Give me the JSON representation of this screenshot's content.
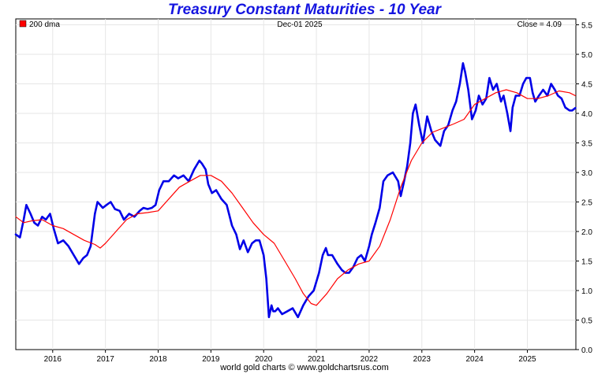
{
  "chart_data": {
    "type": "line",
    "title": "Treasury Constant Maturities - 10 Year",
    "date_label": "Dec-01  2025",
    "close_label": "Close = 4.09",
    "legend": [
      {
        "name": "200 dma",
        "color": "#ff0000"
      }
    ],
    "footer": "world gold charts © www.goldchartsrus.com",
    "xlim": [
      2015.3,
      2025.92
    ],
    "ylim": [
      0,
      5.6
    ],
    "x_ticks": [
      2016,
      2017,
      2018,
      2019,
      2020,
      2021,
      2022,
      2023,
      2024,
      2025
    ],
    "x_tick_labels": [
      "2016",
      "2017",
      "2018",
      "2019",
      "2020",
      "2021",
      "2022",
      "2023",
      "2024",
      "2025"
    ],
    "y_ticks": [
      0,
      0.5,
      1,
      1.5,
      2,
      2.5,
      3,
      3.5,
      4,
      4.5,
      5,
      5.5
    ],
    "y_tick_labels": [
      "0.0",
      "0.5",
      "1.0",
      "1.5",
      "2.0",
      "2.5",
      "3.0",
      "3.5",
      "4.0",
      "4.5",
      "5.0",
      "5.5"
    ],
    "grid": true,
    "series": [
      {
        "name": "",
        "color": "#0000e8",
        "x": [
          2015.3,
          2015.38,
          2015.45,
          2015.5,
          2015.58,
          2015.65,
          2015.72,
          2015.8,
          2015.87,
          2015.95,
          2016.02,
          2016.1,
          2016.2,
          2016.3,
          2016.4,
          2016.5,
          2016.58,
          2016.65,
          2016.72,
          2016.8,
          2016.85,
          2016.9,
          2016.95,
          2017.02,
          2017.1,
          2017.18,
          2017.27,
          2017.35,
          2017.45,
          2017.55,
          2017.65,
          2017.72,
          2017.8,
          2017.88,
          2017.95,
          2018.02,
          2018.1,
          2018.2,
          2018.3,
          2018.38,
          2018.48,
          2018.58,
          2018.68,
          2018.78,
          2018.83,
          2018.9,
          2018.95,
          2019.02,
          2019.1,
          2019.2,
          2019.3,
          2019.4,
          2019.48,
          2019.55,
          2019.62,
          2019.7,
          2019.78,
          2019.85,
          2019.92,
          2020.0,
          2020.05,
          2020.1,
          2020.15,
          2020.18,
          2020.22,
          2020.27,
          2020.35,
          2020.45,
          2020.55,
          2020.65,
          2020.75,
          2020.85,
          2020.95,
          2021.05,
          2021.12,
          2021.18,
          2021.22,
          2021.3,
          2021.4,
          2021.48,
          2021.55,
          2021.62,
          2021.7,
          2021.78,
          2021.85,
          2021.92,
          2022.0,
          2022.05,
          2022.12,
          2022.2,
          2022.27,
          2022.35,
          2022.45,
          2022.55,
          2022.6,
          2022.65,
          2022.72,
          2022.78,
          2022.83,
          2022.88,
          2022.95,
          2023.02,
          2023.1,
          2023.18,
          2023.25,
          2023.35,
          2023.42,
          2023.5,
          2023.58,
          2023.65,
          2023.72,
          2023.78,
          2023.82,
          2023.88,
          2023.95,
          2024.02,
          2024.08,
          2024.15,
          2024.22,
          2024.28,
          2024.35,
          2024.42,
          2024.5,
          2024.55,
          2024.62,
          2024.68,
          2024.72,
          2024.78,
          2024.85,
          2024.92,
          2024.98,
          2025.05,
          2025.1,
          2025.15,
          2025.22,
          2025.3,
          2025.38,
          2025.45,
          2025.52,
          2025.58,
          2025.65,
          2025.72,
          2025.8,
          2025.85,
          2025.91
        ],
        "values": [
          1.95,
          1.9,
          2.2,
          2.45,
          2.3,
          2.15,
          2.1,
          2.25,
          2.2,
          2.3,
          2.05,
          1.8,
          1.85,
          1.75,
          1.6,
          1.45,
          1.55,
          1.6,
          1.75,
          2.3,
          2.5,
          2.45,
          2.4,
          2.45,
          2.5,
          2.38,
          2.35,
          2.2,
          2.3,
          2.25,
          2.35,
          2.4,
          2.38,
          2.4,
          2.45,
          2.7,
          2.85,
          2.85,
          2.95,
          2.9,
          2.95,
          2.85,
          3.05,
          3.2,
          3.15,
          3.05,
          2.8,
          2.65,
          2.7,
          2.55,
          2.45,
          2.1,
          1.95,
          1.7,
          1.85,
          1.65,
          1.8,
          1.85,
          1.85,
          1.6,
          1.2,
          0.55,
          0.75,
          0.65,
          0.65,
          0.7,
          0.6,
          0.65,
          0.7,
          0.55,
          0.75,
          0.9,
          1.0,
          1.3,
          1.6,
          1.72,
          1.6,
          1.6,
          1.45,
          1.35,
          1.3,
          1.3,
          1.4,
          1.55,
          1.6,
          1.5,
          1.75,
          1.95,
          2.15,
          2.4,
          2.85,
          2.95,
          3.0,
          2.85,
          2.6,
          2.8,
          3.1,
          3.5,
          4.0,
          4.15,
          3.8,
          3.5,
          3.95,
          3.7,
          3.55,
          3.45,
          3.7,
          3.8,
          4.05,
          4.2,
          4.5,
          4.85,
          4.7,
          4.4,
          3.9,
          4.05,
          4.3,
          4.15,
          4.25,
          4.6,
          4.4,
          4.5,
          4.2,
          4.3,
          4.0,
          3.7,
          4.1,
          4.3,
          4.3,
          4.5,
          4.6,
          4.6,
          4.35,
          4.2,
          4.3,
          4.4,
          4.3,
          4.5,
          4.4,
          4.3,
          4.25,
          4.1,
          4.05,
          4.05,
          4.09
        ]
      },
      {
        "name": "200 dma",
        "color": "#ff0000",
        "x": [
          2015.3,
          2015.45,
          2015.6,
          2015.8,
          2016.0,
          2016.2,
          2016.4,
          2016.6,
          2016.8,
          2016.9,
          2017.0,
          2017.2,
          2017.4,
          2017.6,
          2017.8,
          2018.0,
          2018.2,
          2018.4,
          2018.6,
          2018.8,
          2019.0,
          2019.2,
          2019.4,
          2019.6,
          2019.8,
          2020.0,
          2020.2,
          2020.4,
          2020.6,
          2020.75,
          2020.9,
          2021.0,
          2021.2,
          2021.4,
          2021.6,
          2021.8,
          2022.0,
          2022.2,
          2022.4,
          2022.6,
          2022.8,
          2023.0,
          2023.2,
          2023.4,
          2023.6,
          2023.8,
          2024.0,
          2024.2,
          2024.4,
          2024.6,
          2024.8,
          2025.0,
          2025.2,
          2025.4,
          2025.6,
          2025.8,
          2025.91
        ],
        "values": [
          2.25,
          2.15,
          2.18,
          2.2,
          2.1,
          2.05,
          1.95,
          1.85,
          1.78,
          1.72,
          1.8,
          2.0,
          2.2,
          2.3,
          2.32,
          2.35,
          2.55,
          2.75,
          2.85,
          2.95,
          2.95,
          2.85,
          2.65,
          2.4,
          2.15,
          1.95,
          1.8,
          1.5,
          1.2,
          0.95,
          0.78,
          0.75,
          0.95,
          1.2,
          1.35,
          1.45,
          1.5,
          1.75,
          2.2,
          2.75,
          3.2,
          3.5,
          3.68,
          3.75,
          3.82,
          3.9,
          4.15,
          4.25,
          4.35,
          4.4,
          4.35,
          4.25,
          4.25,
          4.3,
          4.38,
          4.35,
          4.3
        ]
      }
    ]
  }
}
